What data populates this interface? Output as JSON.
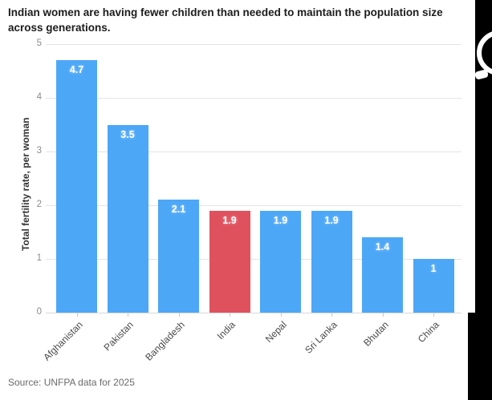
{
  "header": {
    "title": "Indian women are having fewer children than needed to maintain the population size across generations."
  },
  "chart_data": {
    "type": "bar",
    "title": "Indian women are having fewer children than needed to maintain the population size across generations.",
    "categories": [
      "Afghanistan",
      "Pakistan",
      "Bangladesh",
      "India",
      "Nepal",
      "Sri Lanka",
      "Bhutan",
      "China"
    ],
    "values": [
      4.7,
      3.5,
      2.1,
      1.9,
      1.9,
      1.9,
      1.4,
      1
    ],
    "value_labels": [
      "4.7",
      "3.5",
      "2.1",
      "1.9",
      "1.9",
      "1.9",
      "1.4",
      "1"
    ],
    "highlight_category": "India",
    "xlabel": "",
    "ylabel": "Total fertility rate, per woman",
    "ylim": [
      0,
      5
    ],
    "yticks": [
      0,
      1,
      2,
      3,
      4,
      5
    ],
    "grid": true,
    "legend": false,
    "bar_color_default": "#4da7f7",
    "bar_color_highlight": "#e0515e"
  },
  "footer": {
    "source": "Source: UNFPA data for 2025"
  },
  "colors": {
    "background": "#ffffff",
    "title_text": "#1c1c1c",
    "grid": "#e4e4e4",
    "axis_tick_text": "#8c8c8c",
    "category_text": "#4a4a4a",
    "source_text": "#6a6a6a",
    "edge_strip": "#000000",
    "logo": "#ffffff"
  }
}
